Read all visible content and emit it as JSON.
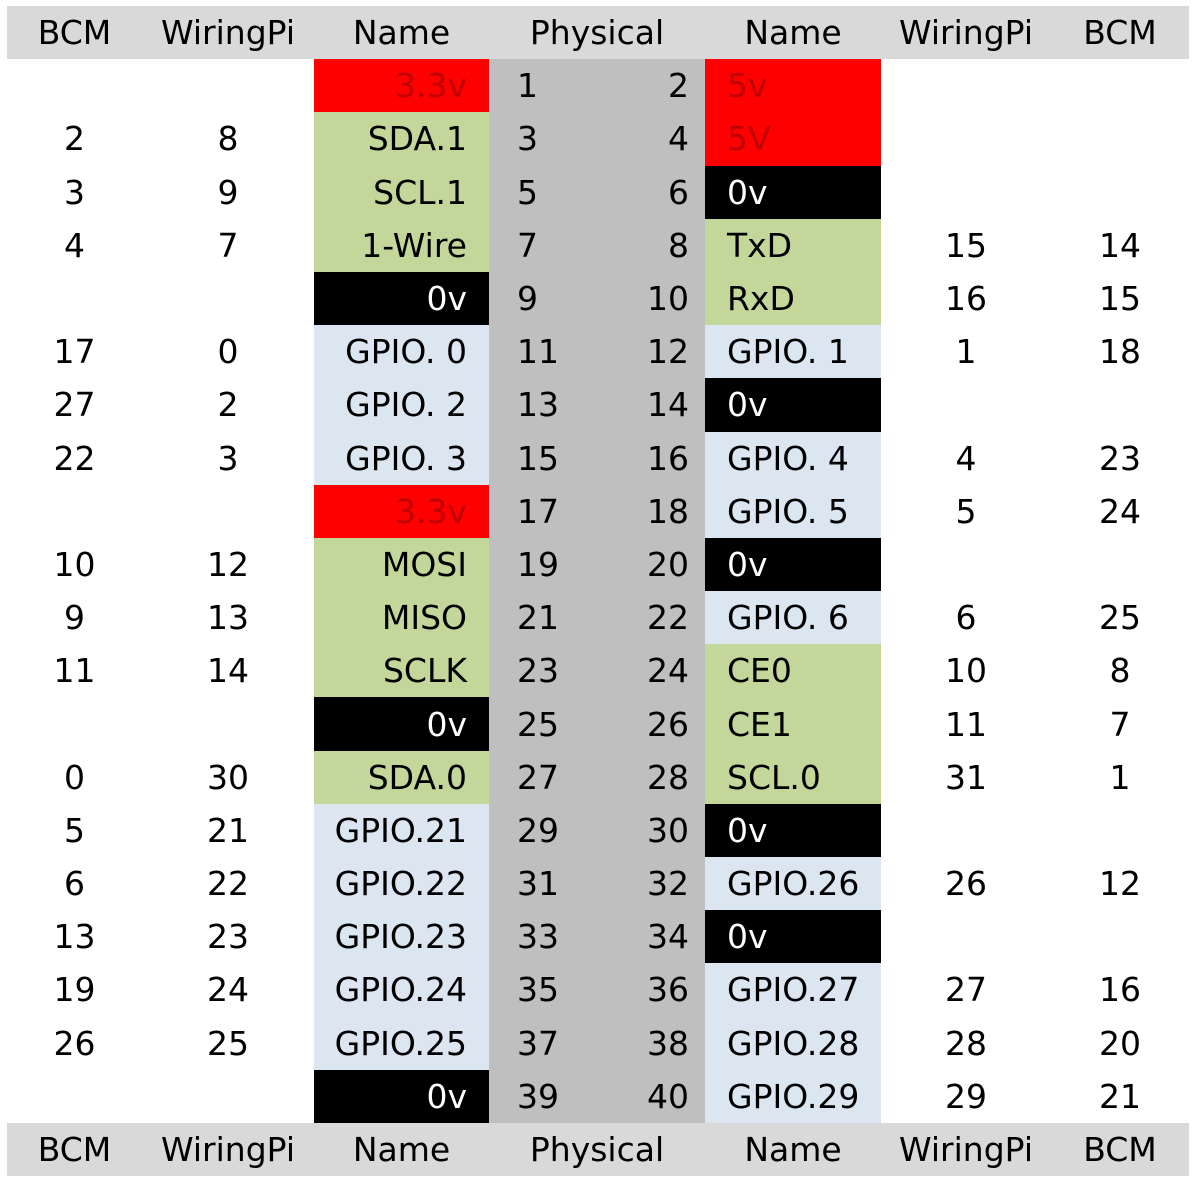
{
  "header": {
    "bcm_left": "BCM",
    "wpi_left": "WiringPi",
    "name_left": "Name",
    "physical": "Physical",
    "name_right": "Name",
    "wpi_right": "WiringPi",
    "bcm_right": "BCM"
  },
  "pins": [
    {
      "bcm_l": "",
      "wpi_l": "",
      "name_l": "3.3v",
      "type_l": "pwr",
      "phys_l": "1",
      "phys_r": "2",
      "name_r": "5v",
      "type_r": "pwr",
      "wpi_r": "",
      "bcm_r": ""
    },
    {
      "bcm_l": "2",
      "wpi_l": "8",
      "name_l": "SDA.1",
      "type_l": "bus",
      "phys_l": "3",
      "phys_r": "4",
      "name_r": "5V",
      "type_r": "pwr",
      "wpi_r": "",
      "bcm_r": ""
    },
    {
      "bcm_l": "3",
      "wpi_l": "9",
      "name_l": "SCL.1",
      "type_l": "bus",
      "phys_l": "5",
      "phys_r": "6",
      "name_r": "0v",
      "type_r": "gnd",
      "wpi_r": "",
      "bcm_r": ""
    },
    {
      "bcm_l": "4",
      "wpi_l": "7",
      "name_l": "1-Wire",
      "type_l": "bus",
      "phys_l": "7",
      "phys_r": "8",
      "name_r": "TxD",
      "type_r": "bus",
      "wpi_r": "15",
      "bcm_r": "14"
    },
    {
      "bcm_l": "",
      "wpi_l": "",
      "name_l": "0v",
      "type_l": "gnd",
      "phys_l": "9",
      "phys_r": "10",
      "name_r": "RxD",
      "type_r": "bus",
      "wpi_r": "16",
      "bcm_r": "15"
    },
    {
      "bcm_l": "17",
      "wpi_l": "0",
      "name_l": "GPIO. 0",
      "type_l": "gpio",
      "phys_l": "11",
      "phys_r": "12",
      "name_r": "GPIO. 1",
      "type_r": "gpio",
      "wpi_r": "1",
      "bcm_r": "18"
    },
    {
      "bcm_l": "27",
      "wpi_l": "2",
      "name_l": "GPIO. 2",
      "type_l": "gpio",
      "phys_l": "13",
      "phys_r": "14",
      "name_r": "0v",
      "type_r": "gnd",
      "wpi_r": "",
      "bcm_r": ""
    },
    {
      "bcm_l": "22",
      "wpi_l": "3",
      "name_l": "GPIO. 3",
      "type_l": "gpio",
      "phys_l": "15",
      "phys_r": "16",
      "name_r": "GPIO. 4",
      "type_r": "gpio",
      "wpi_r": "4",
      "bcm_r": "23"
    },
    {
      "bcm_l": "",
      "wpi_l": "",
      "name_l": "3.3v",
      "type_l": "pwr",
      "phys_l": "17",
      "phys_r": "18",
      "name_r": "GPIO. 5",
      "type_r": "gpio",
      "wpi_r": "5",
      "bcm_r": "24"
    },
    {
      "bcm_l": "10",
      "wpi_l": "12",
      "name_l": "MOSI",
      "type_l": "bus",
      "phys_l": "19",
      "phys_r": "20",
      "name_r": "0v",
      "type_r": "gnd",
      "wpi_r": "",
      "bcm_r": ""
    },
    {
      "bcm_l": "9",
      "wpi_l": "13",
      "name_l": "MISO",
      "type_l": "bus",
      "phys_l": "21",
      "phys_r": "22",
      "name_r": "GPIO. 6",
      "type_r": "gpio",
      "wpi_r": "6",
      "bcm_r": "25"
    },
    {
      "bcm_l": "11",
      "wpi_l": "14",
      "name_l": "SCLK",
      "type_l": "bus",
      "phys_l": "23",
      "phys_r": "24",
      "name_r": "CE0",
      "type_r": "bus",
      "wpi_r": "10",
      "bcm_r": "8"
    },
    {
      "bcm_l": "",
      "wpi_l": "",
      "name_l": "0v",
      "type_l": "gnd",
      "phys_l": "25",
      "phys_r": "26",
      "name_r": "CE1",
      "type_r": "bus",
      "wpi_r": "11",
      "bcm_r": "7"
    },
    {
      "bcm_l": "0",
      "wpi_l": "30",
      "name_l": "SDA.0",
      "type_l": "bus",
      "phys_l": "27",
      "phys_r": "28",
      "name_r": "SCL.0",
      "type_r": "bus",
      "wpi_r": "31",
      "bcm_r": "1"
    },
    {
      "bcm_l": "5",
      "wpi_l": "21",
      "name_l": "GPIO.21",
      "type_l": "gpio",
      "phys_l": "29",
      "phys_r": "30",
      "name_r": "0v",
      "type_r": "gnd",
      "wpi_r": "",
      "bcm_r": ""
    },
    {
      "bcm_l": "6",
      "wpi_l": "22",
      "name_l": "GPIO.22",
      "type_l": "gpio",
      "phys_l": "31",
      "phys_r": "32",
      "name_r": "GPIO.26",
      "type_r": "gpio",
      "wpi_r": "26",
      "bcm_r": "12"
    },
    {
      "bcm_l": "13",
      "wpi_l": "23",
      "name_l": "GPIO.23",
      "type_l": "gpio",
      "phys_l": "33",
      "phys_r": "34",
      "name_r": "0v",
      "type_r": "gnd",
      "wpi_r": "",
      "bcm_r": ""
    },
    {
      "bcm_l": "19",
      "wpi_l": "24",
      "name_l": "GPIO.24",
      "type_l": "gpio",
      "phys_l": "35",
      "phys_r": "36",
      "name_r": "GPIO.27",
      "type_r": "gpio",
      "wpi_r": "27",
      "bcm_r": "16"
    },
    {
      "bcm_l": "26",
      "wpi_l": "25",
      "name_l": "GPIO.25",
      "type_l": "gpio",
      "phys_l": "37",
      "phys_r": "38",
      "name_r": "GPIO.28",
      "type_r": "gpio",
      "wpi_r": "28",
      "bcm_r": "20"
    },
    {
      "bcm_l": "",
      "wpi_l": "",
      "name_l": "0v",
      "type_l": "gnd",
      "phys_l": "39",
      "phys_r": "40",
      "name_r": "GPIO.29",
      "type_r": "gpio",
      "wpi_r": "29",
      "bcm_r": "21"
    }
  ],
  "colors": {
    "header_bg": "#d9d9d9",
    "physical_bg": "#bfbfbf",
    "power_bg": "#ff0000",
    "power_text": "#c00000",
    "ground_bg": "#000000",
    "ground_text": "#ffffff",
    "bus_bg": "#c4d79b",
    "gpio_bg": "#dce6f1"
  }
}
